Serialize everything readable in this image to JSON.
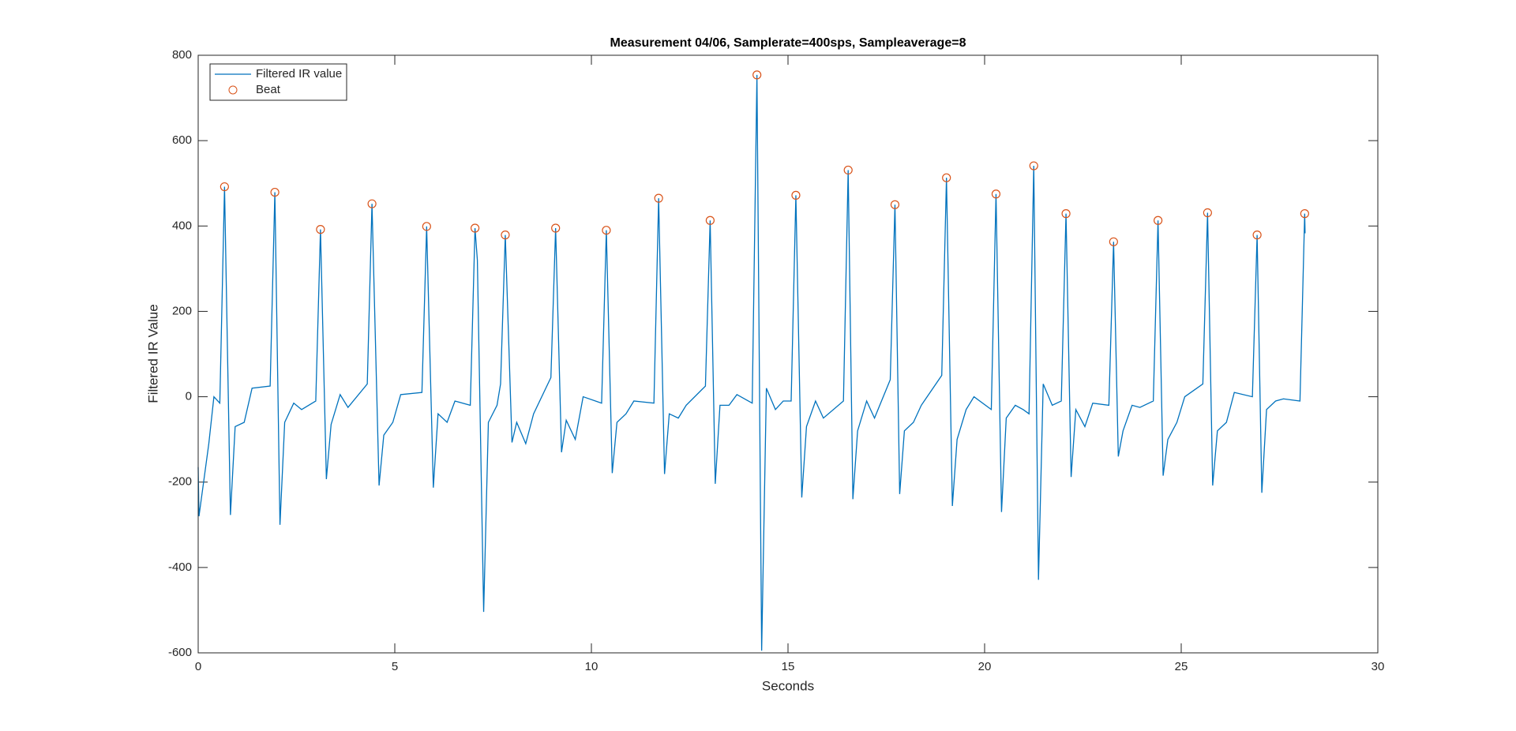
{
  "chart_data": {
    "type": "line",
    "title": "Measurement 04/06, Samplerate=400sps, Sampleaverage=8",
    "x_label": "Seconds",
    "y_label": "Filtered IR Value",
    "xlim": [
      0,
      30
    ],
    "xticks": [
      0,
      5,
      10,
      15,
      20,
      25,
      30
    ],
    "ylim": [
      -600,
      800
    ],
    "yticks": [
      -600,
      -400,
      -200,
      0,
      200,
      400,
      600,
      800
    ],
    "legend": "upper left",
    "series": [
      {
        "name": "Filtered IR value",
        "color": "#0072bd",
        "style": "line",
        "x": [
          0,
          0.02,
          0.27,
          0.4,
          0.55,
          0.67,
          0.82,
          0.94,
          1.17,
          1.37,
          1.83,
          1.95,
          2.08,
          2.2,
          2.43,
          2.63,
          2.99,
          3.11,
          3.26,
          3.38,
          3.61,
          3.81,
          4.3,
          4.42,
          4.6,
          4.72,
          4.95,
          5.15,
          5.69,
          5.81,
          5.98,
          6.1,
          6.33,
          6.53,
          6.92,
          7.04,
          7.1,
          7.26,
          7.38,
          7.6,
          7.69,
          7.81,
          7.98,
          8.1,
          8.33,
          8.53,
          8.97,
          9.09,
          9.24,
          9.36,
          9.59,
          9.79,
          10.26,
          10.38,
          10.53,
          10.65,
          10.88,
          11.08,
          11.59,
          11.71,
          11.86,
          11.98,
          12.21,
          12.41,
          12.9,
          13.02,
          13.15,
          13.27,
          13.5,
          13.7,
          14.09,
          14.21,
          14.33,
          14.45,
          14.68,
          14.88,
          15.08,
          15.2,
          15.35,
          15.47,
          15.7,
          15.9,
          16.41,
          16.53,
          16.65,
          16.77,
          17.0,
          17.2,
          17.6,
          17.72,
          17.84,
          17.96,
          18.19,
          18.39,
          18.91,
          19.03,
          19.18,
          19.3,
          19.53,
          19.73,
          20.17,
          20.29,
          20.43,
          20.55,
          20.78,
          20.98,
          21.13,
          21.25,
          21.37,
          21.49,
          21.72,
          21.95,
          22.07,
          22.2,
          22.32,
          22.55,
          22.75,
          23.16,
          23.28,
          23.4,
          23.52,
          23.75,
          23.95,
          24.29,
          24.41,
          24.54,
          24.66,
          24.89,
          25.09,
          25.55,
          25.67,
          25.8,
          25.92,
          26.15,
          26.35,
          26.81,
          26.93,
          27.05,
          27.17,
          27.4,
          27.6,
          28.02,
          28.14,
          28.15
        ],
        "values": [
          -165,
          -280,
          -110,
          0,
          -15,
          492,
          -277,
          -70,
          -60,
          20,
          25,
          479,
          -300,
          -60,
          -15,
          -30,
          -10,
          392,
          -193,
          -65,
          5,
          -25,
          30,
          452,
          -208,
          -90,
          -60,
          5,
          10,
          399,
          -213,
          -40,
          -60,
          -10,
          -20,
          395,
          320,
          -504,
          -60,
          -20,
          30,
          379,
          -107,
          -60,
          -110,
          -40,
          45,
          395,
          -130,
          -55,
          -100,
          0,
          -15,
          390,
          -179,
          -60,
          -40,
          -10,
          -15,
          465,
          -181,
          -40,
          -50,
          -20,
          25,
          413,
          -204,
          -20,
          -20,
          5,
          -15,
          754,
          -595,
          20,
          -30,
          -10,
          -10,
          472,
          -236,
          -70,
          -10,
          -50,
          -10,
          531,
          -240,
          -80,
          -10,
          -50,
          40,
          450,
          -228,
          -80,
          -60,
          -20,
          50,
          513,
          -256,
          -100,
          -30,
          0,
          -30,
          475,
          -270,
          -50,
          -20,
          -30,
          -40,
          541,
          -429,
          30,
          -20,
          -10,
          429,
          -188,
          -30,
          -70,
          -15,
          -20,
          363,
          -140,
          -80,
          -20,
          -25,
          -10,
          413,
          -185,
          -100,
          -60,
          0,
          30,
          431,
          -208,
          -80,
          -60,
          10,
          0,
          379,
          -225,
          -30,
          -10,
          -5,
          -10,
          429,
          383
        ]
      },
      {
        "name": "Beat",
        "color": "#d95319",
        "style": "marker",
        "x": [
          0.67,
          1.95,
          3.11,
          4.42,
          5.81,
          7.04,
          7.81,
          9.09,
          10.38,
          11.71,
          13.02,
          14.21,
          15.2,
          16.53,
          17.72,
          19.03,
          20.29,
          21.25,
          22.07,
          23.28,
          24.41,
          25.67,
          26.93,
          28.14
        ],
        "values": [
          492,
          479,
          392,
          452,
          399,
          395,
          379,
          395,
          390,
          465,
          413,
          754,
          472,
          531,
          450,
          513,
          475,
          541,
          429,
          363,
          413,
          431,
          379,
          429
        ]
      }
    ]
  }
}
